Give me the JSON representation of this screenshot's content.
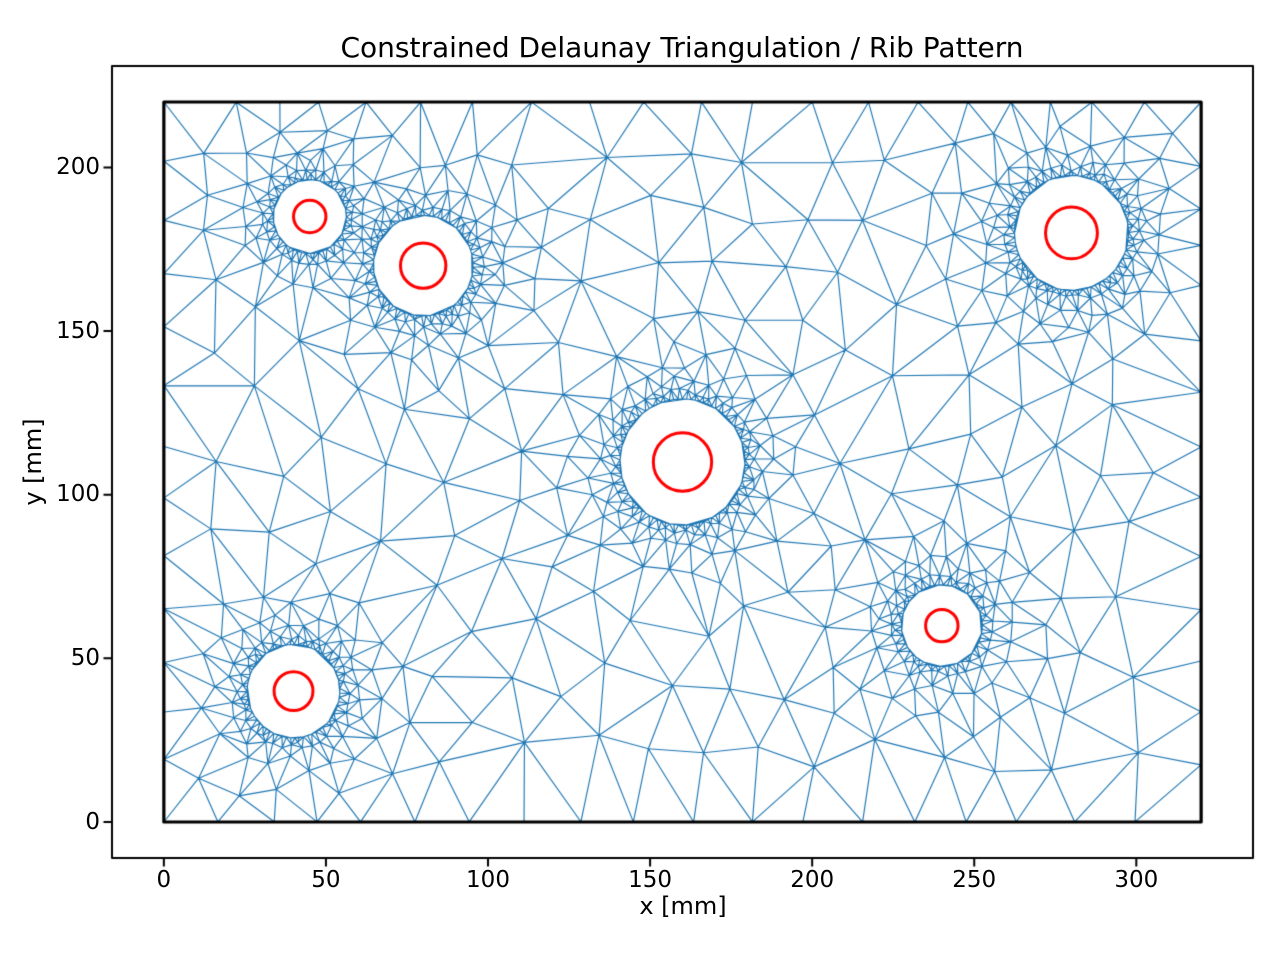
{
  "figure": {
    "title": "Constrained Delaunay Triangulation / Rib Pattern",
    "xlabel": "x [mm]",
    "ylabel": "y [mm]"
  },
  "chart_data": {
    "type": "triangulation",
    "title": "Constrained Delaunay Triangulation / Rib Pattern",
    "xlabel": "x [mm]",
    "ylabel": "y [mm]",
    "xlim": [
      -16,
      336
    ],
    "ylim": [
      -11,
      231
    ],
    "xticks": [
      0,
      50,
      100,
      150,
      200,
      250,
      300
    ],
    "yticks": [
      0,
      50,
      100,
      150,
      200
    ],
    "grid": false,
    "legend": null,
    "plate_mm": {
      "x0": 0,
      "y0": 0,
      "x1": 320,
      "y1": 220
    },
    "holes_mm": [
      {
        "cx": 45,
        "cy": 185,
        "rib_radius": 5,
        "clearance_radius": 11.3
      },
      {
        "cx": 80,
        "cy": 170,
        "rib_radius": 7,
        "clearance_radius": 15.4
      },
      {
        "cx": 160,
        "cy": 110,
        "rib_radius": 9,
        "clearance_radius": 19.3
      },
      {
        "cx": 280,
        "cy": 180,
        "rib_radius": 8,
        "clearance_radius": 17.6
      },
      {
        "cx": 240,
        "cy": 60,
        "rib_radius": 5,
        "clearance_radius": 12.5
      },
      {
        "cx": 40,
        "cy": 40,
        "rib_radius": 6,
        "clearance_radius": 14.3
      }
    ],
    "mesh": {
      "h_min": 1.35,
      "h_max": 19.5,
      "grading": 0.52,
      "rings": 5,
      "seed": 123457,
      "color": "#1f77b4",
      "line_width": 1.15
    },
    "colors": {
      "rib_circle": "#ff0000",
      "plate_border": "#000000",
      "axis": "#000000",
      "background": "#ffffff",
      "text": "#000000"
    }
  }
}
